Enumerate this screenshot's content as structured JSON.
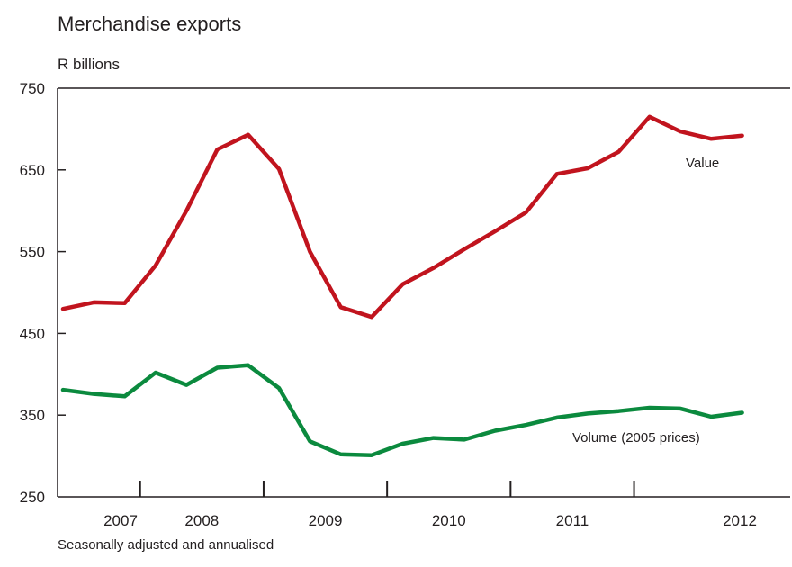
{
  "chart_data": {
    "type": "line",
    "title": "Merchandise exports",
    "ylabel": "R billions",
    "note": "Seasonally adjusted and annualised",
    "ylim": [
      250,
      750
    ],
    "yticks": [
      "250",
      "350",
      "450",
      "550",
      "650",
      "750"
    ],
    "x_ticks": [
      "2007",
      "2008",
      "2009",
      "2010",
      "2011",
      "2012"
    ],
    "x_unit": "quarter",
    "grid": false,
    "series": [
      {
        "name": "Value",
        "color": "#c1141e",
        "values": [
          480,
          488,
          487,
          533,
          600,
          675,
          693,
          651,
          550,
          482,
          470,
          510,
          530,
          553,
          575,
          598,
          645,
          652,
          672,
          715,
          697,
          688,
          692
        ]
      },
      {
        "name": "Volume (2005 prices)",
        "color": "#0b8a3e",
        "values": [
          381,
          376,
          373,
          402,
          387,
          408,
          411,
          383,
          318,
          302,
          301,
          315,
          322,
          320,
          331,
          338,
          347,
          352,
          355,
          359,
          358,
          348,
          353
        ]
      }
    ]
  }
}
